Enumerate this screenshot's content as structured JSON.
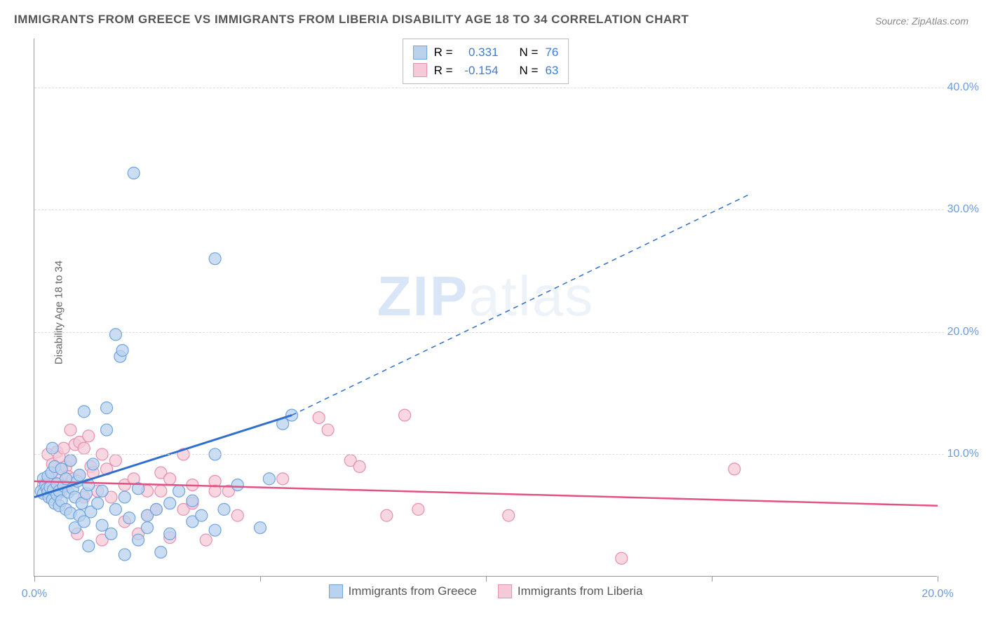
{
  "title": "IMMIGRANTS FROM GREECE VS IMMIGRANTS FROM LIBERIA DISABILITY AGE 18 TO 34 CORRELATION CHART",
  "source": "Source: ZipAtlas.com",
  "ylabel": "Disability Age 18 to 34",
  "watermark_a": "ZIP",
  "watermark_b": "atlas",
  "chart": {
    "type": "scatter",
    "xlim": [
      0,
      20
    ],
    "ylim": [
      0,
      44
    ],
    "xticks": [
      0,
      5,
      10,
      15,
      20
    ],
    "xtick_labels": [
      "0.0%",
      "",
      "",
      "",
      "20.0%"
    ],
    "yticks": [
      10,
      20,
      30,
      40
    ],
    "ytick_labels": [
      "10.0%",
      "20.0%",
      "30.0%",
      "40.0%"
    ],
    "grid_color": "#e4e4e4",
    "background_color": "#ffffff"
  },
  "series": [
    {
      "name": "Immigrants from Greece",
      "fill": "#b9d2ee",
      "stroke": "#6ea4e0",
      "line_color": "#2e6fd0",
      "marker_radius": 8.5,
      "R_label": "R =",
      "R": "0.331",
      "N_label": "N =",
      "N": "76",
      "trend": {
        "x1": 0,
        "y1": 6.5,
        "x2": 5.7,
        "y2": 13.2,
        "ext_x2": 15.8,
        "ext_y2": 31.2
      },
      "points": [
        [
          0.15,
          7.0
        ],
        [
          0.2,
          8.0
        ],
        [
          0.2,
          6.8
        ],
        [
          0.25,
          7.5
        ],
        [
          0.28,
          7.2
        ],
        [
          0.3,
          6.9
        ],
        [
          0.3,
          8.2
        ],
        [
          0.32,
          6.5
        ],
        [
          0.35,
          7.3
        ],
        [
          0.38,
          8.5
        ],
        [
          0.4,
          10.5
        ],
        [
          0.4,
          6.3
        ],
        [
          0.42,
          7.1
        ],
        [
          0.45,
          9.0
        ],
        [
          0.45,
          6.0
        ],
        [
          0.5,
          7.6
        ],
        [
          0.5,
          6.7
        ],
        [
          0.55,
          7.0
        ],
        [
          0.55,
          5.8
        ],
        [
          0.6,
          8.8
        ],
        [
          0.6,
          6.2
        ],
        [
          0.65,
          7.4
        ],
        [
          0.7,
          8.0
        ],
        [
          0.7,
          5.5
        ],
        [
          0.75,
          6.9
        ],
        [
          0.8,
          9.5
        ],
        [
          0.8,
          5.2
        ],
        [
          0.85,
          7.2
        ],
        [
          0.9,
          4.0
        ],
        [
          0.9,
          6.5
        ],
        [
          0.95,
          7.8
        ],
        [
          1.0,
          8.3
        ],
        [
          1.0,
          5.0
        ],
        [
          1.05,
          6.0
        ],
        [
          1.1,
          13.5
        ],
        [
          1.1,
          4.5
        ],
        [
          1.15,
          6.8
        ],
        [
          1.2,
          2.5
        ],
        [
          1.2,
          7.5
        ],
        [
          1.25,
          5.3
        ],
        [
          1.3,
          9.2
        ],
        [
          1.4,
          6.0
        ],
        [
          1.5,
          4.2
        ],
        [
          1.5,
          7.0
        ],
        [
          1.6,
          13.8
        ],
        [
          1.6,
          12.0
        ],
        [
          1.7,
          3.5
        ],
        [
          1.8,
          19.8
        ],
        [
          1.8,
          5.5
        ],
        [
          1.9,
          18.0
        ],
        [
          1.95,
          18.5
        ],
        [
          2.0,
          1.8
        ],
        [
          2.0,
          6.5
        ],
        [
          2.1,
          4.8
        ],
        [
          2.2,
          33.0
        ],
        [
          2.3,
          3.0
        ],
        [
          2.3,
          7.2
        ],
        [
          2.5,
          5.0
        ],
        [
          2.5,
          4.0
        ],
        [
          2.7,
          5.5
        ],
        [
          2.8,
          2.0
        ],
        [
          3.0,
          6.0
        ],
        [
          3.0,
          3.5
        ],
        [
          3.2,
          7.0
        ],
        [
          3.5,
          4.5
        ],
        [
          3.5,
          6.2
        ],
        [
          3.7,
          5.0
        ],
        [
          4.0,
          3.8
        ],
        [
          4.0,
          26.0
        ],
        [
          4.2,
          5.5
        ],
        [
          4.5,
          7.5
        ],
        [
          5.0,
          4.0
        ],
        [
          5.2,
          8.0
        ],
        [
          5.5,
          12.5
        ],
        [
          5.7,
          13.2
        ],
        [
          4.0,
          10.0
        ]
      ]
    },
    {
      "name": "Immigrants from Liberia",
      "fill": "#f5c9d7",
      "stroke": "#e78fb0",
      "line_color": "#e35284",
      "marker_radius": 8.5,
      "R_label": "R =",
      "R": "-0.154",
      "N_label": "N =",
      "N": "63",
      "trend": {
        "x1": 0,
        "y1": 7.8,
        "x2": 20,
        "y2": 5.8
      },
      "points": [
        [
          0.2,
          7.5
        ],
        [
          0.3,
          8.0
        ],
        [
          0.3,
          10.0
        ],
        [
          0.4,
          7.8
        ],
        [
          0.4,
          9.2
        ],
        [
          0.5,
          8.5
        ],
        [
          0.5,
          10.2
        ],
        [
          0.55,
          9.8
        ],
        [
          0.6,
          8.8
        ],
        [
          0.6,
          7.0
        ],
        [
          0.65,
          10.5
        ],
        [
          0.7,
          9.0
        ],
        [
          0.7,
          7.5
        ],
        [
          0.75,
          8.2
        ],
        [
          0.8,
          12.0
        ],
        [
          0.8,
          9.5
        ],
        [
          0.85,
          8.0
        ],
        [
          0.9,
          10.8
        ],
        [
          0.95,
          3.5
        ],
        [
          1.0,
          11.0
        ],
        [
          1.0,
          8.3
        ],
        [
          1.1,
          10.5
        ],
        [
          1.1,
          6.5
        ],
        [
          1.2,
          11.5
        ],
        [
          1.25,
          9.0
        ],
        [
          1.3,
          8.5
        ],
        [
          1.4,
          7.0
        ],
        [
          1.5,
          10.0
        ],
        [
          1.5,
          3.0
        ],
        [
          1.6,
          8.8
        ],
        [
          1.7,
          6.5
        ],
        [
          1.8,
          9.5
        ],
        [
          2.0,
          4.5
        ],
        [
          2.0,
          7.5
        ],
        [
          2.2,
          8.0
        ],
        [
          2.3,
          3.5
        ],
        [
          2.5,
          7.0
        ],
        [
          2.5,
          5.0
        ],
        [
          2.7,
          5.5
        ],
        [
          2.8,
          8.5
        ],
        [
          3.0,
          8.0
        ],
        [
          3.0,
          3.2
        ],
        [
          3.3,
          5.5
        ],
        [
          3.3,
          10.0
        ],
        [
          3.5,
          6.0
        ],
        [
          3.5,
          7.5
        ],
        [
          3.8,
          3.0
        ],
        [
          4.0,
          7.8
        ],
        [
          4.3,
          7.0
        ],
        [
          4.5,
          5.0
        ],
        [
          5.5,
          8.0
        ],
        [
          6.3,
          13.0
        ],
        [
          6.5,
          12.0
        ],
        [
          7.0,
          9.5
        ],
        [
          7.2,
          9.0
        ],
        [
          7.8,
          5.0
        ],
        [
          8.2,
          13.2
        ],
        [
          8.5,
          5.5
        ],
        [
          10.5,
          5.0
        ],
        [
          13.0,
          1.5
        ],
        [
          15.5,
          8.8
        ],
        [
          4.0,
          7.0
        ],
        [
          2.8,
          7.0
        ]
      ]
    }
  ],
  "bottom_legend": [
    {
      "label": "Immigrants from Greece",
      "fill": "#b9d2ee",
      "stroke": "#6ea4e0"
    },
    {
      "label": "Immigrants from Liberia",
      "fill": "#f5c9d7",
      "stroke": "#e78fb0"
    }
  ]
}
